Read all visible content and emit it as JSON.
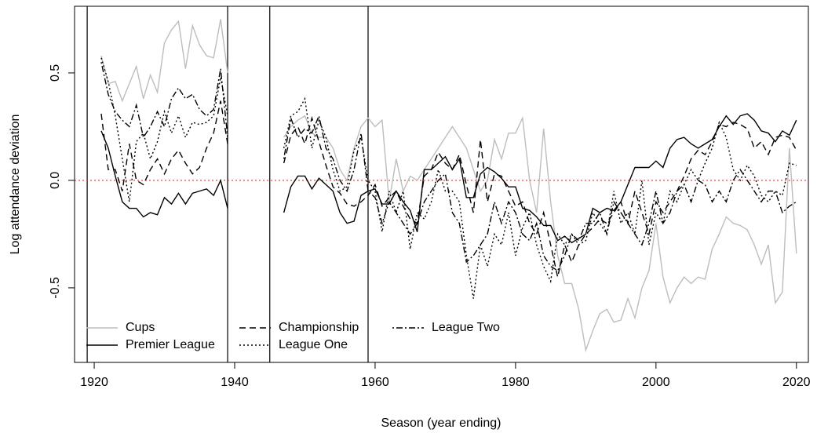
{
  "chart_data": {
    "type": "line",
    "xlabel": "Season (year ending)",
    "ylabel": "Log attendance deviation",
    "xlim": [
      1917.2,
      2021.7
    ],
    "ylim": [
      -0.847,
      0.81
    ],
    "xticks": [
      1920,
      1940,
      1960,
      1980,
      2000,
      2020
    ],
    "yticks": [
      -0.5,
      {
        "value": 0,
        "label": "0.0"
      },
      0.5
    ],
    "vlines": [
      1919,
      1939,
      1945,
      1959
    ],
    "hline": 0,
    "hline_color": "#e8352e",
    "legend": "bottom-left",
    "x": [
      1921,
      1922,
      1923,
      1924,
      1925,
      1926,
      1927,
      1928,
      1929,
      1930,
      1931,
      1932,
      1933,
      1934,
      1935,
      1936,
      1937,
      1938,
      1939,
      1940,
      1941,
      1942,
      1943,
      1944,
      1945,
      1946,
      1947,
      1948,
      1949,
      1950,
      1951,
      1952,
      1953,
      1954,
      1955,
      1956,
      1957,
      1958,
      1959,
      1960,
      1961,
      1962,
      1963,
      1964,
      1965,
      1966,
      1967,
      1968,
      1969,
      1970,
      1971,
      1972,
      1973,
      1974,
      1975,
      1976,
      1977,
      1978,
      1979,
      1980,
      1981,
      1982,
      1983,
      1984,
      1985,
      1986,
      1987,
      1988,
      1989,
      1990,
      1991,
      1992,
      1993,
      1994,
      1995,
      1996,
      1997,
      1998,
      1999,
      2000,
      2001,
      2002,
      2003,
      2004,
      2005,
      2006,
      2007,
      2008,
      2009,
      2010,
      2011,
      2012,
      2013,
      2014,
      2015,
      2016,
      2017,
      2018,
      2019,
      2020
    ],
    "series": [
      {
        "name": "Cups",
        "color": "#bdbdbd",
        "dash": "solid",
        "values": [
          0.58,
          0.45,
          0.46,
          0.37,
          0.45,
          0.53,
          0.38,
          0.49,
          0.41,
          0.64,
          0.7,
          0.74,
          0.52,
          0.72,
          0.63,
          0.58,
          0.57,
          0.75,
          0.5,
          null,
          null,
          null,
          null,
          null,
          null,
          null,
          0.2,
          0.25,
          0.28,
          0.3,
          0.22,
          0.2,
          0.2,
          0.15,
          0.05,
          0.0,
          0.15,
          0.25,
          0.29,
          0.25,
          0.28,
          -0.1,
          0.1,
          -0.05,
          0.02,
          0.0,
          0.05,
          0.1,
          0.15,
          0.2,
          0.25,
          0.2,
          0.15,
          0.05,
          -0.05,
          0.0,
          0.19,
          0.1,
          0.22,
          0.22,
          0.29,
          0.0,
          -0.15,
          0.24,
          -0.1,
          -0.35,
          -0.48,
          -0.48,
          -0.6,
          -0.79,
          -0.7,
          -0.62,
          -0.6,
          -0.66,
          -0.65,
          -0.55,
          -0.64,
          -0.5,
          -0.42,
          -0.2,
          -0.45,
          -0.57,
          -0.5,
          -0.45,
          -0.48,
          -0.45,
          -0.46,
          -0.32,
          -0.25,
          -0.17,
          -0.2,
          -0.21,
          -0.23,
          -0.3,
          -0.39,
          -0.3,
          -0.57,
          -0.52,
          0.15,
          -0.34
        ]
      },
      {
        "name": "Premier League",
        "color": "#000000",
        "dash": "solid",
        "values": [
          0.23,
          0.15,
          0.02,
          -0.1,
          -0.13,
          -0.13,
          -0.17,
          -0.15,
          -0.16,
          -0.08,
          -0.11,
          -0.06,
          -0.11,
          -0.06,
          -0.05,
          -0.04,
          -0.07,
          0.0,
          -0.13,
          null,
          null,
          null,
          null,
          null,
          null,
          null,
          -0.15,
          -0.03,
          0.02,
          0.02,
          -0.04,
          0.01,
          -0.02,
          -0.05,
          -0.15,
          -0.2,
          -0.19,
          -0.07,
          -0.05,
          -0.04,
          -0.11,
          -0.11,
          -0.05,
          -0.1,
          -0.14,
          -0.24,
          0.05,
          0.05,
          0.08,
          0.11,
          0.05,
          0.1,
          -0.08,
          -0.08,
          0.03,
          0.06,
          0.04,
          0.01,
          -0.03,
          -0.03,
          -0.13,
          -0.14,
          -0.17,
          -0.21,
          -0.21,
          -0.28,
          -0.26,
          -0.29,
          -0.27,
          -0.25,
          -0.13,
          -0.15,
          -0.13,
          -0.14,
          -0.1,
          -0.02,
          0.06,
          0.06,
          0.06,
          0.09,
          0.06,
          0.15,
          0.19,
          0.2,
          0.17,
          0.15,
          0.17,
          0.19,
          0.25,
          0.3,
          0.26,
          0.3,
          0.31,
          0.28,
          0.23,
          0.22,
          0.18,
          0.23,
          0.21,
          0.28
        ]
      },
      {
        "name": "Championship",
        "color": "#000000",
        "dash": "dashed",
        "values": [
          0.31,
          0.05,
          0.05,
          -0.05,
          0.17,
          0.0,
          -0.02,
          0.05,
          0.1,
          0.03,
          0.1,
          0.14,
          0.08,
          0.03,
          0.06,
          0.15,
          0.22,
          0.37,
          0.17,
          null,
          null,
          null,
          null,
          null,
          null,
          null,
          0.08,
          0.21,
          0.25,
          0.17,
          0.29,
          0.18,
          0.07,
          -0.03,
          -0.06,
          -0.11,
          -0.12,
          -0.1,
          -0.07,
          -0.02,
          -0.12,
          -0.08,
          -0.05,
          -0.12,
          -0.18,
          -0.2,
          0.02,
          0.05,
          0.13,
          0.08,
          0.05,
          0.12,
          -0.02,
          -0.15,
          0.19,
          -0.1,
          0.03,
          0.02,
          -0.05,
          -0.12,
          -0.1,
          -0.2,
          -0.25,
          -0.15,
          -0.3,
          -0.45,
          -0.3,
          -0.38,
          -0.3,
          -0.25,
          -0.22,
          -0.18,
          -0.2,
          -0.15,
          -0.1,
          -0.2,
          -0.05,
          -0.15,
          -0.25,
          -0.1,
          -0.15,
          -0.1,
          -0.05,
          0.02,
          0.1,
          0.14,
          0.12,
          0.18,
          0.26,
          0.25,
          0.27,
          0.26,
          0.24,
          0.15,
          0.18,
          0.12,
          0.2,
          0.21,
          0.2,
          0.14
        ]
      },
      {
        "name": "League One",
        "color": "#000000",
        "dash": "dotted",
        "values": [
          0.57,
          0.46,
          0.3,
          0.1,
          -0.1,
          0.18,
          0.22,
          0.1,
          0.18,
          0.32,
          0.22,
          0.3,
          0.2,
          0.27,
          0.26,
          0.27,
          0.3,
          0.48,
          0.3,
          null,
          null,
          null,
          null,
          null,
          null,
          null,
          0.15,
          0.3,
          0.32,
          0.38,
          0.15,
          0.28,
          0.2,
          0.05,
          -0.05,
          -0.03,
          0.14,
          0.2,
          0.0,
          -0.05,
          -0.24,
          -0.05,
          -0.15,
          -0.05,
          -0.32,
          -0.15,
          -0.18,
          -0.1,
          0.05,
          -0.05,
          -0.05,
          -0.1,
          -0.35,
          -0.55,
          -0.3,
          -0.4,
          -0.25,
          -0.3,
          -0.15,
          -0.35,
          -0.22,
          -0.15,
          -0.3,
          -0.4,
          -0.47,
          -0.25,
          -0.3,
          -0.25,
          -0.3,
          -0.28,
          -0.15,
          -0.2,
          -0.25,
          -0.05,
          -0.2,
          -0.15,
          -0.25,
          0.0,
          -0.3,
          -0.15,
          -0.2,
          -0.05,
          -0.1,
          -0.02,
          0.05,
          0.0,
          0.08,
          0.15,
          0.27,
          0.2,
          0.05,
          0.0,
          0.07,
          0.02,
          -0.07,
          -0.1,
          -0.05,
          -0.07,
          0.08,
          0.07
        ]
      },
      {
        "name": "League Two",
        "color": "#000000",
        "dash": "dotdash",
        "values": [
          0.55,
          0.4,
          0.32,
          0.28,
          0.25,
          0.35,
          0.2,
          0.25,
          0.32,
          0.25,
          0.38,
          0.43,
          0.38,
          0.4,
          0.33,
          0.3,
          0.33,
          0.52,
          0.2,
          null,
          null,
          null,
          null,
          null,
          null,
          null,
          0.1,
          0.29,
          0.2,
          0.24,
          0.22,
          0.3,
          0.15,
          0.1,
          0.0,
          -0.05,
          0.05,
          0.22,
          -0.05,
          -0.08,
          -0.2,
          -0.1,
          -0.15,
          -0.2,
          -0.25,
          -0.2,
          -0.1,
          -0.05,
          0.0,
          0.03,
          -0.15,
          -0.2,
          -0.38,
          -0.35,
          -0.3,
          -0.25,
          -0.1,
          -0.2,
          -0.1,
          -0.15,
          -0.25,
          -0.28,
          -0.2,
          -0.35,
          -0.4,
          -0.42,
          -0.35,
          -0.25,
          -0.28,
          -0.2,
          -0.2,
          -0.15,
          -0.25,
          -0.1,
          -0.15,
          -0.2,
          -0.25,
          -0.3,
          -0.2,
          -0.05,
          -0.2,
          -0.15,
          -0.05,
          -0.02,
          -0.1,
          0.0,
          -0.02,
          -0.1,
          -0.05,
          -0.1,
          0.0,
          0.05,
          0.0,
          -0.05,
          -0.1,
          -0.05,
          -0.05,
          -0.15,
          -0.12,
          -0.1
        ]
      }
    ]
  }
}
